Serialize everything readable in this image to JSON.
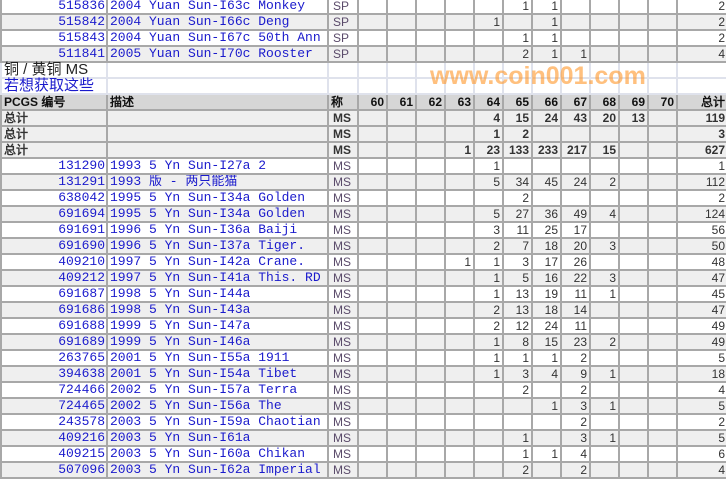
{
  "grades": [
    "60",
    "61",
    "62",
    "63",
    "64",
    "65",
    "66",
    "67",
    "68",
    "69",
    "70"
  ],
  "sp_rows": [
    {
      "pcgs": "515836",
      "desc": "2004 Yuan Sun-I63c Monkey",
      "grade": "SP",
      "counts": [
        null,
        null,
        null,
        null,
        null,
        1,
        1,
        null,
        null,
        null,
        null
      ],
      "total": 2
    },
    {
      "pcgs": "515842",
      "desc": "2004 Yuan Sun-I66c Deng",
      "grade": "SP",
      "counts": [
        null,
        null,
        null,
        null,
        1,
        null,
        1,
        null,
        null,
        null,
        null
      ],
      "total": 2
    },
    {
      "pcgs": "515843",
      "desc": "2004 Yuan Sun-I67c 50th Ann",
      "grade": "SP",
      "counts": [
        null,
        null,
        null,
        null,
        null,
        1,
        1,
        null,
        null,
        null,
        null
      ],
      "total": 2
    },
    {
      "pcgs": "511841",
      "desc": "2005 Yuan Sun-I70c Rooster",
      "grade": "SP",
      "counts": [
        null,
        null,
        null,
        null,
        null,
        2,
        1,
        1,
        null,
        null,
        null
      ],
      "total": 4
    }
  ],
  "section": {
    "title": "铜 / 黄铜  MS",
    "link": "若想获取这些"
  },
  "header": {
    "pcgs": "PCGS 编号",
    "desc": "描述",
    "grade": "称",
    "total": "总计"
  },
  "totals": [
    {
      "label": "总计",
      "grade": "MS",
      "counts": [
        null,
        null,
        null,
        null,
        4,
        15,
        24,
        43,
        20,
        13,
        null
      ],
      "total": 119
    },
    {
      "label": "总计",
      "grade": "MS",
      "counts": [
        null,
        null,
        null,
        null,
        1,
        2,
        null,
        null,
        null,
        null,
        null
      ],
      "total": 3
    },
    {
      "label": "总计",
      "grade": "MS",
      "counts": [
        null,
        null,
        null,
        1,
        23,
        133,
        233,
        217,
        15,
        null,
        null
      ],
      "total": 627
    }
  ],
  "ms_rows": [
    {
      "pcgs": "131290",
      "desc": "1993 5 Yn Sun-I27a 2",
      "grade": "MS",
      "counts": [
        null,
        null,
        null,
        null,
        1,
        null,
        null,
        null,
        null,
        null,
        null
      ],
      "total": 1
    },
    {
      "pcgs": "131291",
      "desc": "1993 版 - 两只能猫",
      "grade": "MS",
      "counts": [
        null,
        null,
        null,
        null,
        5,
        34,
        45,
        24,
        2,
        null,
        null
      ],
      "total": 112
    },
    {
      "pcgs": "638042",
      "desc": "1995 5 Yn Sun-I34a Golden",
      "grade": "MS",
      "counts": [
        null,
        null,
        null,
        null,
        null,
        2,
        null,
        null,
        null,
        null,
        null
      ],
      "total": 2
    },
    {
      "pcgs": "691694",
      "desc": "1995 5 Yn Sun-I34a Golden",
      "grade": "MS",
      "counts": [
        null,
        null,
        null,
        null,
        5,
        27,
        36,
        49,
        4,
        null,
        null
      ],
      "total": 124
    },
    {
      "pcgs": "691691",
      "desc": "1996 5 Yn Sun-I36a Baiji",
      "grade": "MS",
      "counts": [
        null,
        null,
        null,
        null,
        3,
        11,
        25,
        17,
        null,
        null,
        null
      ],
      "total": 56
    },
    {
      "pcgs": "691690",
      "desc": "1996 5 Yn Sun-I37a Tiger.",
      "grade": "MS",
      "counts": [
        null,
        null,
        null,
        null,
        2,
        7,
        18,
        20,
        3,
        null,
        null
      ],
      "total": 50
    },
    {
      "pcgs": "409210",
      "desc": "1997 5 Yn Sun-I42a Crane.",
      "grade": "MS",
      "counts": [
        null,
        null,
        null,
        1,
        1,
        3,
        17,
        26,
        null,
        null,
        null
      ],
      "total": 48
    },
    {
      "pcgs": "409212",
      "desc": "1997 5 Yn Sun-I41a This. RD",
      "grade": "MS",
      "counts": [
        null,
        null,
        null,
        null,
        1,
        5,
        16,
        22,
        3,
        null,
        null
      ],
      "total": 47
    },
    {
      "pcgs": "691687",
      "desc": "1998 5 Yn Sun-I44a",
      "grade": "MS",
      "counts": [
        null,
        null,
        null,
        null,
        1,
        13,
        19,
        11,
        1,
        null,
        null
      ],
      "total": 45
    },
    {
      "pcgs": "691686",
      "desc": "1998 5 Yn Sun-I43a",
      "grade": "MS",
      "counts": [
        null,
        null,
        null,
        null,
        2,
        13,
        18,
        14,
        null,
        null,
        null
      ],
      "total": 47
    },
    {
      "pcgs": "691688",
      "desc": "1999 5 Yn Sun-I47a",
      "grade": "MS",
      "counts": [
        null,
        null,
        null,
        null,
        2,
        12,
        24,
        11,
        null,
        null,
        null
      ],
      "total": 49
    },
    {
      "pcgs": "691689",
      "desc": "1999 5 Yn Sun-I46a",
      "grade": "MS",
      "counts": [
        null,
        null,
        null,
        null,
        1,
        8,
        15,
        23,
        2,
        null,
        null
      ],
      "total": 49
    },
    {
      "pcgs": "263765",
      "desc": "2001 5 Yn Sun-I55a 1911",
      "grade": "MS",
      "counts": [
        null,
        null,
        null,
        null,
        1,
        1,
        1,
        2,
        null,
        null,
        null
      ],
      "total": 5
    },
    {
      "pcgs": "394638",
      "desc": "2001 5 Yn Sun-I54a Tibet",
      "grade": "MS",
      "counts": [
        null,
        null,
        null,
        null,
        1,
        3,
        4,
        9,
        1,
        null,
        null
      ],
      "total": 18
    },
    {
      "pcgs": "724466",
      "desc": "2002 5 Yn Sun-I57a Terra",
      "grade": "MS",
      "counts": [
        null,
        null,
        null,
        null,
        null,
        2,
        null,
        2,
        null,
        null,
        null
      ],
      "total": 4
    },
    {
      "pcgs": "724465",
      "desc": "2002 5 Yn Sun-I56a The",
      "grade": "MS",
      "counts": [
        null,
        null,
        null,
        null,
        null,
        null,
        1,
        3,
        1,
        null,
        null
      ],
      "total": 5
    },
    {
      "pcgs": "243578",
      "desc": "2003 5 Yn Sun-I59a Chaotian",
      "grade": "MS",
      "counts": [
        null,
        null,
        null,
        null,
        null,
        null,
        null,
        2,
        null,
        null,
        null
      ],
      "total": 2
    },
    {
      "pcgs": "409216",
      "desc": "2003 5 Yn Sun-I61a",
      "grade": "MS",
      "counts": [
        null,
        null,
        null,
        null,
        null,
        1,
        null,
        3,
        1,
        null,
        null
      ],
      "total": 5
    },
    {
      "pcgs": "409215",
      "desc": "2003 5 Yn Sun-I60a Chikan",
      "grade": "MS",
      "counts": [
        null,
        null,
        null,
        null,
        null,
        1,
        1,
        4,
        null,
        null,
        null
      ],
      "total": 6
    },
    {
      "pcgs": "507096",
      "desc": "2003 5 Yn Sun-I62a Imperial",
      "grade": "MS",
      "counts": [
        null,
        null,
        null,
        null,
        null,
        2,
        null,
        2,
        null,
        null,
        null
      ],
      "total": 4
    }
  ],
  "watermark": "www.coin001.com"
}
